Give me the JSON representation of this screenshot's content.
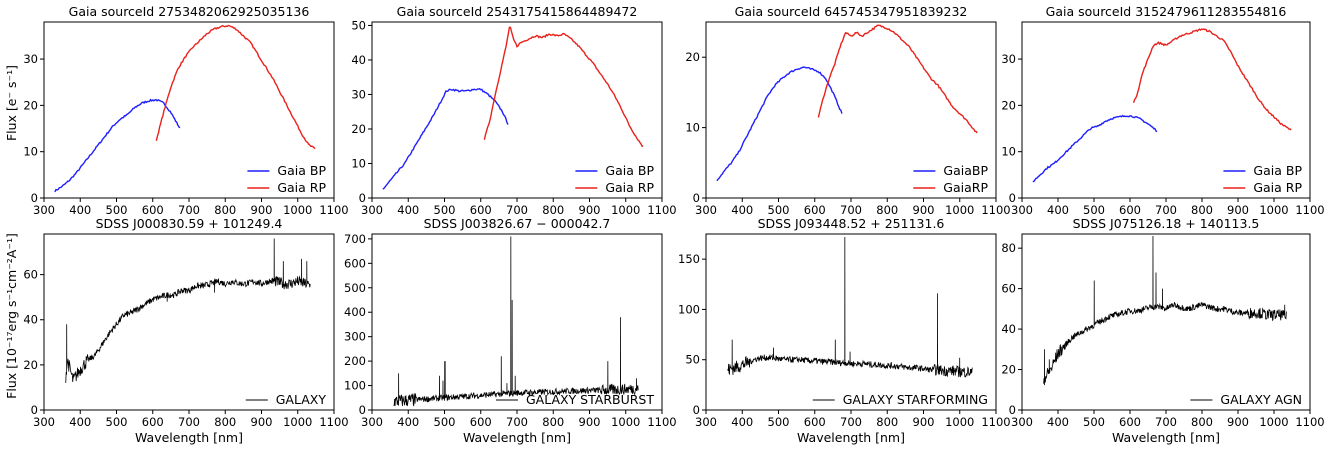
{
  "ylabels": {
    "top": "Flux [e⁻ s⁻¹]",
    "bottom": "Flux [10⁻¹⁷erg s⁻¹cm⁻²A⁻¹]"
  },
  "colors": {
    "bp": "#1f1fff",
    "rp": "#e8221b",
    "sdss": "#000000"
  },
  "chart_data": [
    {
      "type": "line",
      "title": "Gaia sourceId 2753482062925035136",
      "xlabel": "",
      "ylabel": "Flux [e⁻ s⁻¹]",
      "xlim": [
        300,
        1100
      ],
      "ylim": [
        0,
        38
      ],
      "xticks": [
        300,
        400,
        500,
        600,
        700,
        800,
        900,
        1000,
        1100
      ],
      "yticks": [
        0,
        10,
        20,
        30
      ],
      "legend": "lower-right",
      "series": [
        {
          "name": "Gaia BP",
          "color": "#1f1fff",
          "x": [
            330,
            350,
            370,
            390,
            410,
            430,
            450,
            470,
            490,
            510,
            530,
            550,
            570,
            590,
            610,
            630,
            650,
            675
          ],
          "y": [
            1.5,
            2.5,
            3.8,
            5.5,
            7.5,
            9.5,
            11.5,
            13.5,
            15.5,
            17,
            18,
            19.5,
            20.5,
            21,
            21.2,
            20.5,
            18.5,
            15
          ]
        },
        {
          "name": "Gaia RP",
          "color": "#e8221b",
          "x": [
            610,
            630,
            650,
            670,
            690,
            710,
            730,
            750,
            770,
            790,
            810,
            830,
            850,
            870,
            890,
            910,
            930,
            950,
            970,
            990,
            1010,
            1030,
            1050
          ],
          "y": [
            12.5,
            18.5,
            24,
            28,
            30.5,
            32.5,
            34,
            35.5,
            36.5,
            37,
            37.2,
            36.5,
            35,
            33.5,
            31,
            28.5,
            26,
            23,
            20,
            17,
            14,
            11.5,
            10.5
          ]
        }
      ]
    },
    {
      "type": "line",
      "title": "Gaia sourceId 2543175415864489472",
      "xlabel": "",
      "ylabel": "",
      "xlim": [
        300,
        1100
      ],
      "ylim": [
        0,
        51
      ],
      "xticks": [
        300,
        400,
        500,
        600,
        700,
        800,
        900,
        1000,
        1100
      ],
      "yticks": [
        0,
        10,
        20,
        30,
        40,
        50
      ],
      "legend": "lower-right",
      "series": [
        {
          "name": "Gaia BP",
          "color": "#1f1fff",
          "x": [
            330,
            350,
            370,
            390,
            410,
            430,
            450,
            470,
            490,
            505,
            520,
            540,
            560,
            580,
            600,
            620,
            640,
            660,
            675
          ],
          "y": [
            2.5,
            5,
            7.5,
            10,
            13.5,
            17,
            20.5,
            24,
            28,
            31,
            31.5,
            31,
            31,
            31.5,
            31.5,
            30,
            28,
            25,
            21.5
          ]
        },
        {
          "name": "Gaia RP",
          "color": "#e8221b",
          "x": [
            610,
            625,
            640,
            655,
            670,
            680,
            690,
            700,
            710,
            730,
            750,
            770,
            790,
            810,
            830,
            850,
            870,
            890,
            910,
            930,
            950,
            970,
            990,
            1010,
            1030,
            1050
          ],
          "y": [
            17,
            22.5,
            30,
            37,
            44,
            50,
            46,
            44,
            45,
            46,
            47,
            46.5,
            47.5,
            47,
            47.5,
            46,
            44,
            41.5,
            39,
            36,
            33,
            29.5,
            25.5,
            21,
            17.5,
            14.5
          ]
        }
      ]
    },
    {
      "type": "line",
      "title": "Gaia sourceId 645745347951839232",
      "xlabel": "",
      "ylabel": "",
      "xlim": [
        300,
        1100
      ],
      "ylim": [
        0,
        25
      ],
      "xticks": [
        300,
        400,
        500,
        600,
        700,
        800,
        900,
        1000,
        1100
      ],
      "yticks": [
        0,
        10,
        20
      ],
      "legend": "lower-right",
      "series": [
        {
          "name": "GaiaBP",
          "color": "#1f1fff",
          "x": [
            330,
            350,
            370,
            390,
            410,
            430,
            450,
            470,
            490,
            510,
            530,
            550,
            570,
            590,
            610,
            630,
            650,
            675
          ],
          "y": [
            2.5,
            3.8,
            5,
            6.5,
            8.5,
            10.5,
            12.5,
            14.5,
            16,
            17,
            17.8,
            18.3,
            18.6,
            18.3,
            18,
            17,
            15,
            12
          ]
        },
        {
          "name": "GaiaRP",
          "color": "#e8221b",
          "x": [
            610,
            625,
            640,
            655,
            670,
            685,
            700,
            715,
            730,
            745,
            760,
            775,
            790,
            805,
            820,
            840,
            860,
            880,
            900,
            920,
            940,
            960,
            980,
            1000,
            1020,
            1050
          ],
          "y": [
            11.5,
            14.5,
            17,
            19,
            21.5,
            23.5,
            23,
            23.5,
            23,
            23.5,
            24,
            24.5,
            24.3,
            24,
            23.5,
            22.5,
            21.5,
            20,
            18.5,
            17,
            16,
            14.5,
            13,
            12,
            11,
            9
          ]
        }
      ]
    },
    {
      "type": "line",
      "title": "Gaia sourceId 3152479611283554816",
      "xlabel": "",
      "ylabel": "",
      "xlim": [
        300,
        1100
      ],
      "ylim": [
        0,
        38
      ],
      "xticks": [
        300,
        400,
        500,
        600,
        700,
        800,
        900,
        1000,
        1100
      ],
      "yticks": [
        0,
        10,
        20,
        30
      ],
      "legend": "lower-right",
      "series": [
        {
          "name": "Gaia BP",
          "color": "#1f1fff",
          "x": [
            330,
            350,
            370,
            390,
            410,
            430,
            450,
            470,
            490,
            510,
            530,
            550,
            570,
            590,
            610,
            630,
            650,
            675
          ],
          "y": [
            3.5,
            5,
            6.5,
            7.5,
            9,
            10.5,
            12,
            13.5,
            15,
            15.5,
            16.5,
            17.2,
            17.5,
            17.8,
            17.6,
            17,
            16,
            14.5
          ]
        },
        {
          "name": "Gaia RP",
          "color": "#e8221b",
          "x": [
            610,
            620,
            635,
            650,
            665,
            680,
            700,
            720,
            740,
            760,
            780,
            800,
            820,
            840,
            860,
            880,
            900,
            920,
            940,
            960,
            980,
            1000,
            1020,
            1050
          ],
          "y": [
            20.5,
            22.5,
            27,
            30,
            33,
            33.5,
            33,
            34,
            35,
            35.5,
            36,
            36.5,
            36,
            35,
            34,
            31.5,
            28.5,
            26,
            23.5,
            21,
            19,
            17.5,
            16,
            14.5
          ]
        }
      ]
    },
    {
      "type": "line",
      "title": "SDSS J000830.59 + 101249.4",
      "xlabel": "Wavelength [nm]",
      "ylabel": "Flux [10⁻¹⁷erg s⁻¹cm⁻²A⁻¹]",
      "xlim": [
        300,
        1100
      ],
      "ylim": [
        0,
        78
      ],
      "xticks": [
        300,
        400,
        500,
        600,
        700,
        800,
        900,
        1000,
        1100
      ],
      "yticks": [
        0,
        20,
        40,
        60
      ],
      "legend": "lower-right",
      "series": [
        {
          "name": "GALAXY",
          "color": "#000000",
          "x": [
            360,
            365,
            380,
            400,
            420,
            440,
            460,
            480,
            500,
            520,
            540,
            560,
            580,
            600,
            620,
            640,
            660,
            680,
            700,
            720,
            740,
            760,
            780,
            800,
            820,
            840,
            860,
            880,
            900,
            920,
            940,
            960,
            980,
            1000,
            1020,
            1035
          ],
          "y": [
            15,
            22,
            13,
            18,
            22,
            24,
            29,
            34,
            38,
            42,
            43,
            45,
            47,
            49,
            50,
            51,
            51,
            53,
            53,
            55,
            55,
            56,
            57,
            56,
            57,
            56,
            56,
            57,
            56,
            57,
            57,
            56,
            56,
            57,
            56,
            55
          ],
          "spikes": [
            [
              362,
              38
            ],
            [
              540,
              44
            ],
            [
              640,
              48
            ],
            [
              770,
              52
            ],
            [
              935,
              76
            ],
            [
              960,
              66
            ],
            [
              1010,
              67
            ],
            [
              1025,
              66
            ]
          ]
        }
      ]
    },
    {
      "type": "line",
      "title": "SDSS J003826.67 − 000042.7",
      "xlabel": "Wavelength [nm]",
      "ylabel": "",
      "xlim": [
        300,
        1100
      ],
      "ylim": [
        0,
        720
      ],
      "xticks": [
        300,
        400,
        500,
        600,
        700,
        800,
        900,
        1000,
        1100
      ],
      "yticks": [
        0,
        100,
        200,
        300,
        400,
        500,
        600,
        700
      ],
      "legend": "lower-right",
      "series": [
        {
          "name": "GALAXY STARBURST",
          "color": "#000000",
          "x": [
            360,
            400,
            450,
            500,
            550,
            600,
            650,
            700,
            750,
            800,
            850,
            900,
            950,
            1000,
            1035
          ],
          "y": [
            35,
            40,
            45,
            50,
            55,
            60,
            65,
            70,
            72,
            75,
            78,
            80,
            82,
            85,
            88
          ],
          "spikes": [
            [
              373,
              150
            ],
            [
              486,
              140
            ],
            [
              496,
              120
            ],
            [
              501,
              200
            ],
            [
              656,
              220
            ],
            [
              683,
              710
            ],
            [
              686,
              450
            ],
            [
              672,
              110
            ],
            [
              695,
              140
            ],
            [
              950,
              200
            ],
            [
              985,
              380
            ],
            [
              1030,
              130
            ]
          ]
        }
      ]
    },
    {
      "type": "line",
      "title": "SDSS J093448.52 + 251131.6",
      "xlabel": "Wavelength [nm]",
      "ylabel": "",
      "xlim": [
        300,
        1100
      ],
      "ylim": [
        0,
        175
      ],
      "xticks": [
        300,
        400,
        500,
        600,
        700,
        800,
        900,
        1000,
        1100
      ],
      "yticks": [
        0,
        50,
        100,
        150
      ],
      "legend": "lower-right",
      "series": [
        {
          "name": "GALAXY STARFORMING",
          "color": "#000000",
          "x": [
            360,
            380,
            400,
            420,
            440,
            460,
            480,
            500,
            520,
            540,
            560,
            580,
            600,
            620,
            640,
            660,
            680,
            700,
            720,
            740,
            760,
            780,
            800,
            820,
            840,
            860,
            880,
            900,
            920,
            940,
            960,
            980,
            1000,
            1020,
            1035
          ],
          "y": [
            40,
            42,
            45,
            48,
            51,
            52,
            52,
            51,
            50,
            50,
            50,
            49,
            49,
            48,
            48,
            47,
            47,
            46,
            46,
            46,
            45,
            45,
            44,
            44,
            43,
            42,
            42,
            41,
            40,
            40,
            39,
            39,
            38,
            38,
            37
          ],
          "spikes": [
            [
              372,
              70
            ],
            [
              486,
              62
            ],
            [
              656,
              70
            ],
            [
              683,
              172
            ],
            [
              697,
              58
            ],
            [
              938,
              116
            ],
            [
              1000,
              52
            ]
          ]
        }
      ]
    },
    {
      "type": "line",
      "title": "SDSS J075126.18 + 140113.5",
      "xlabel": "Wavelength [nm]",
      "ylabel": "",
      "xlim": [
        300,
        1100
      ],
      "ylim": [
        0,
        87
      ],
      "xticks": [
        300,
        400,
        500,
        600,
        700,
        800,
        900,
        1000,
        1100
      ],
      "yticks": [
        0,
        20,
        40,
        60,
        80
      ],
      "legend": "lower-right",
      "series": [
        {
          "name": "GALAXY AGN",
          "color": "#000000",
          "x": [
            360,
            380,
            400,
            420,
            440,
            460,
            480,
            500,
            520,
            540,
            560,
            580,
            600,
            620,
            640,
            660,
            680,
            700,
            720,
            740,
            760,
            780,
            800,
            820,
            840,
            860,
            880,
            900,
            920,
            940,
            960,
            980,
            1000,
            1020,
            1035
          ],
          "y": [
            15,
            20,
            28,
            32,
            36,
            38,
            40,
            42,
            44,
            46,
            47,
            48,
            49,
            49,
            50,
            51,
            51,
            50,
            52,
            51,
            50,
            51,
            52,
            51,
            50,
            50,
            49,
            48,
            48,
            48,
            48,
            47,
            47,
            47,
            46
          ],
          "spikes": [
            [
              362,
              30
            ],
            [
              376,
              25
            ],
            [
              500,
              64
            ],
            [
              664,
              86
            ],
            [
              672,
              68
            ],
            [
              690,
              60
            ],
            [
              1030,
              52
            ]
          ]
        }
      ]
    }
  ]
}
